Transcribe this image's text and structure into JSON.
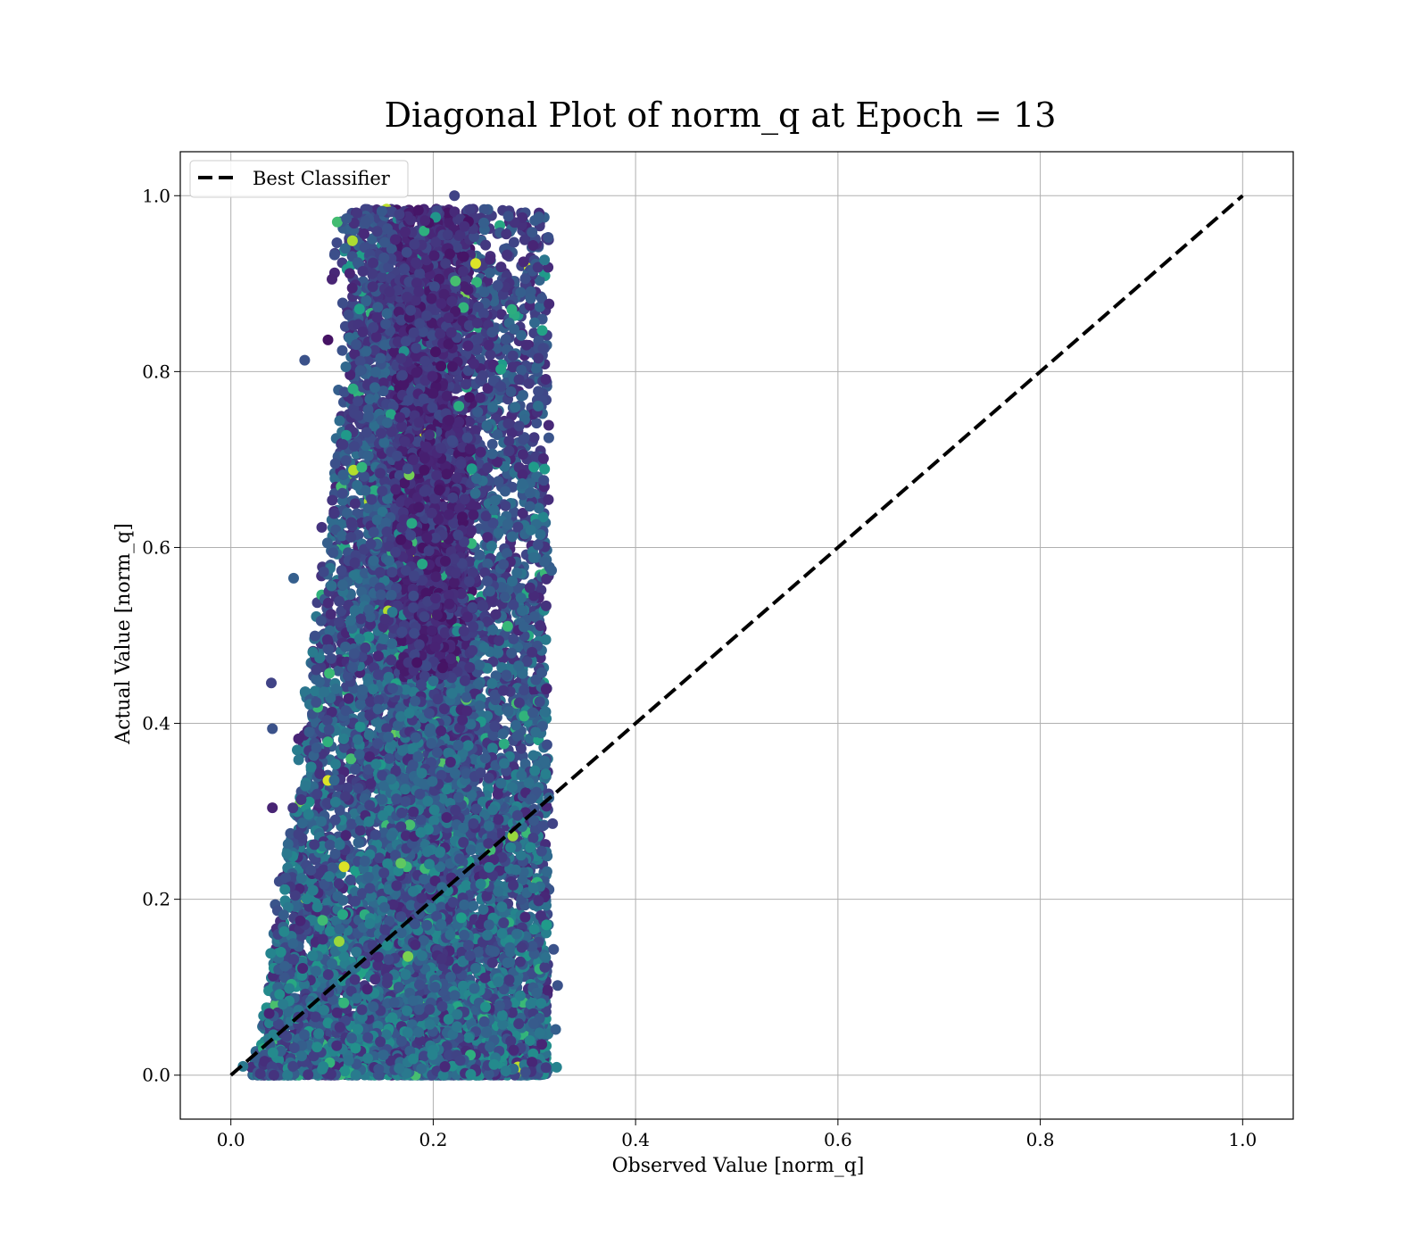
{
  "chart_data": {
    "type": "scatter",
    "title": "Diagonal Plot of norm_q at Epoch = 13",
    "xlabel": "Observed Value [norm_q]",
    "ylabel": "Actual Value [norm_q]",
    "xlim": [
      -0.05,
      1.05
    ],
    "ylim": [
      -0.05,
      1.05
    ],
    "xticks": [
      0.0,
      0.2,
      0.4,
      0.6,
      0.8,
      1.0
    ],
    "yticks": [
      0.0,
      0.2,
      0.4,
      0.6,
      0.8,
      1.0
    ],
    "xtick_labels": [
      "0.0",
      "0.2",
      "0.4",
      "0.6",
      "0.8",
      "1.0"
    ],
    "ytick_labels": [
      "0.0",
      "0.2",
      "0.4",
      "0.6",
      "0.8",
      "1.0"
    ],
    "grid": true,
    "colormap": "viridis",
    "legend": {
      "placement": "top-left",
      "entries": [
        {
          "label": "Best Classifier",
          "style": "dashed",
          "color": "#000000"
        }
      ]
    },
    "reference_line": {
      "label": "Best Classifier",
      "x": [
        0.0,
        1.0
      ],
      "y": [
        0.0,
        1.0
      ],
      "style": "dashed",
      "color": "#000000"
    },
    "scatter_cloud": {
      "x_range": [
        0.015,
        0.325
      ],
      "y_range": [
        0.0,
        1.0
      ],
      "x_center": 0.2,
      "approx_point_count": 14000
    },
    "notable_points": [
      {
        "x": 0.221,
        "y": 1.0,
        "c": 0.2
      },
      {
        "x": 0.133,
        "y": 0.971,
        "c": 0.25
      },
      {
        "x": 0.242,
        "y": 0.923,
        "c": 0.95
      },
      {
        "x": 0.222,
        "y": 0.903,
        "c": 0.7
      },
      {
        "x": 0.1,
        "y": 0.905,
        "c": 0.1
      },
      {
        "x": 0.073,
        "y": 0.813,
        "c": 0.25
      },
      {
        "x": 0.04,
        "y": 0.446,
        "c": 0.2
      },
      {
        "x": 0.041,
        "y": 0.394,
        "c": 0.25
      },
      {
        "x": 0.041,
        "y": 0.304,
        "c": 0.1
      },
      {
        "x": 0.112,
        "y": 0.237,
        "c": 0.95
      },
      {
        "x": 0.168,
        "y": 0.241,
        "c": 0.75
      },
      {
        "x": 0.175,
        "y": 0.135,
        "c": 0.8
      },
      {
        "x": 0.107,
        "y": 0.152,
        "c": 0.85
      },
      {
        "x": 0.323,
        "y": 0.102,
        "c": 0.25
      },
      {
        "x": 0.319,
        "y": 0.143,
        "c": 0.25
      },
      {
        "x": 0.321,
        "y": 0.052,
        "c": 0.3
      },
      {
        "x": 0.322,
        "y": 0.009,
        "c": 0.45
      },
      {
        "x": 0.318,
        "y": 0.286,
        "c": 0.2
      },
      {
        "x": 0.317,
        "y": 0.574,
        "c": 0.3
      },
      {
        "x": 0.31,
        "y": 0.927,
        "c": 0.4
      },
      {
        "x": 0.062,
        "y": 0.565,
        "c": 0.3
      },
      {
        "x": 0.096,
        "y": 0.836,
        "c": 0.05
      },
      {
        "x": 0.12,
        "y": 0.895,
        "c": 0.1
      },
      {
        "x": 0.25,
        "y": 0.969,
        "c": 0.3
      },
      {
        "x": 0.012,
        "y": 0.01,
        "c": 0.4
      }
    ]
  }
}
